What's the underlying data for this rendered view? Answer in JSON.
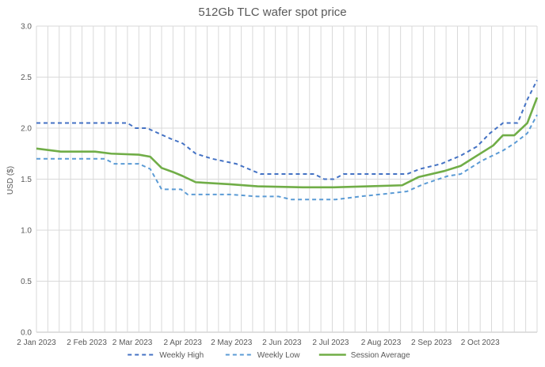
{
  "chart_data": {
    "type": "line",
    "title": "512Gb TLC wafer spot price",
    "xlabel": "",
    "ylabel": "USD ($)",
    "ylim": [
      0,
      3.0
    ],
    "yticks": [
      "0.0",
      "0.5",
      "1.0",
      "1.5",
      "2.0",
      "2.5",
      "3.0"
    ],
    "xlim": [
      "2023-01-02",
      "2023-11-06"
    ],
    "xticks": [
      {
        "date": "2023-01-02",
        "label": "2 Jan 2023"
      },
      {
        "date": "2023-02-02",
        "label": "2 Feb 2023"
      },
      {
        "date": "2023-03-02",
        "label": "2 Mar 2023"
      },
      {
        "date": "2023-04-02",
        "label": "2 Apr 2023"
      },
      {
        "date": "2023-05-02",
        "label": "2 May 2023"
      },
      {
        "date": "2023-06-02",
        "label": "2 Jun 2023"
      },
      {
        "date": "2023-07-02",
        "label": "2 Jul 2023"
      },
      {
        "date": "2023-08-02",
        "label": "2 Aug 2023"
      },
      {
        "date": "2023-09-02",
        "label": "2 Sep 2023"
      },
      {
        "date": "2023-10-02",
        "label": "2 Oct 2023"
      }
    ],
    "grid": "vertical and horizontal",
    "legend": "bottom",
    "series": [
      {
        "name": "Weekly High",
        "color": "#4472c4",
        "style": "dashed",
        "points": [
          [
            "2023-01-02",
            2.05
          ],
          [
            "2023-02-27",
            2.05
          ],
          [
            "2023-03-04",
            2.0
          ],
          [
            "2023-03-11",
            2.0
          ],
          [
            "2023-03-25",
            1.9
          ],
          [
            "2023-04-02",
            1.85
          ],
          [
            "2023-04-10",
            1.75
          ],
          [
            "2023-04-20",
            1.7
          ],
          [
            "2023-05-05",
            1.65
          ],
          [
            "2023-05-20",
            1.55
          ],
          [
            "2023-06-22",
            1.55
          ],
          [
            "2023-06-28",
            1.5
          ],
          [
            "2023-07-04",
            1.5
          ],
          [
            "2023-07-10",
            1.55
          ],
          [
            "2023-08-18",
            1.55
          ],
          [
            "2023-08-26",
            1.6
          ],
          [
            "2023-09-08",
            1.65
          ],
          [
            "2023-09-20",
            1.73
          ],
          [
            "2023-09-30",
            1.82
          ],
          [
            "2023-10-08",
            1.95
          ],
          [
            "2023-10-16",
            2.05
          ],
          [
            "2023-10-25",
            2.05
          ],
          [
            "2023-10-31",
            2.28
          ],
          [
            "2023-11-06",
            2.47
          ]
        ]
      },
      {
        "name": "Weekly Low",
        "color": "#5b9bd5",
        "style": "dashed",
        "points": [
          [
            "2023-01-02",
            1.7
          ],
          [
            "2023-02-13",
            1.7
          ],
          [
            "2023-02-19",
            1.65
          ],
          [
            "2023-03-06",
            1.65
          ],
          [
            "2023-03-13",
            1.6
          ],
          [
            "2023-03-20",
            1.4
          ],
          [
            "2023-04-01",
            1.4
          ],
          [
            "2023-04-05",
            1.35
          ],
          [
            "2023-05-01",
            1.35
          ],
          [
            "2023-05-18",
            1.33
          ],
          [
            "2023-05-31",
            1.33
          ],
          [
            "2023-06-08",
            1.3
          ],
          [
            "2023-07-05",
            1.3
          ],
          [
            "2023-07-20",
            1.33
          ],
          [
            "2023-08-07",
            1.36
          ],
          [
            "2023-08-18",
            1.38
          ],
          [
            "2023-08-28",
            1.45
          ],
          [
            "2023-09-12",
            1.53
          ],
          [
            "2023-09-20",
            1.55
          ],
          [
            "2023-10-03",
            1.68
          ],
          [
            "2023-10-16",
            1.78
          ],
          [
            "2023-10-23",
            1.85
          ],
          [
            "2023-10-31",
            1.95
          ],
          [
            "2023-11-06",
            2.13
          ]
        ]
      },
      {
        "name": "Session Average",
        "color": "#70ad47",
        "style": "solid",
        "points": [
          [
            "2023-01-02",
            1.8
          ],
          [
            "2023-01-17",
            1.77
          ],
          [
            "2023-02-07",
            1.77
          ],
          [
            "2023-02-17",
            1.75
          ],
          [
            "2023-03-06",
            1.74
          ],
          [
            "2023-03-13",
            1.72
          ],
          [
            "2023-03-20",
            1.61
          ],
          [
            "2023-03-27",
            1.57
          ],
          [
            "2023-04-02",
            1.53
          ],
          [
            "2023-04-10",
            1.47
          ],
          [
            "2023-05-01",
            1.45
          ],
          [
            "2023-05-18",
            1.43
          ],
          [
            "2023-06-15",
            1.42
          ],
          [
            "2023-07-04",
            1.42
          ],
          [
            "2023-07-25",
            1.43
          ],
          [
            "2023-08-15",
            1.44
          ],
          [
            "2023-08-25",
            1.52
          ],
          [
            "2023-09-10",
            1.58
          ],
          [
            "2023-09-20",
            1.63
          ],
          [
            "2023-09-30",
            1.73
          ],
          [
            "2023-10-10",
            1.83
          ],
          [
            "2023-10-16",
            1.93
          ],
          [
            "2023-10-23",
            1.93
          ],
          [
            "2023-10-31",
            2.05
          ],
          [
            "2023-11-06",
            2.3
          ]
        ]
      }
    ]
  }
}
